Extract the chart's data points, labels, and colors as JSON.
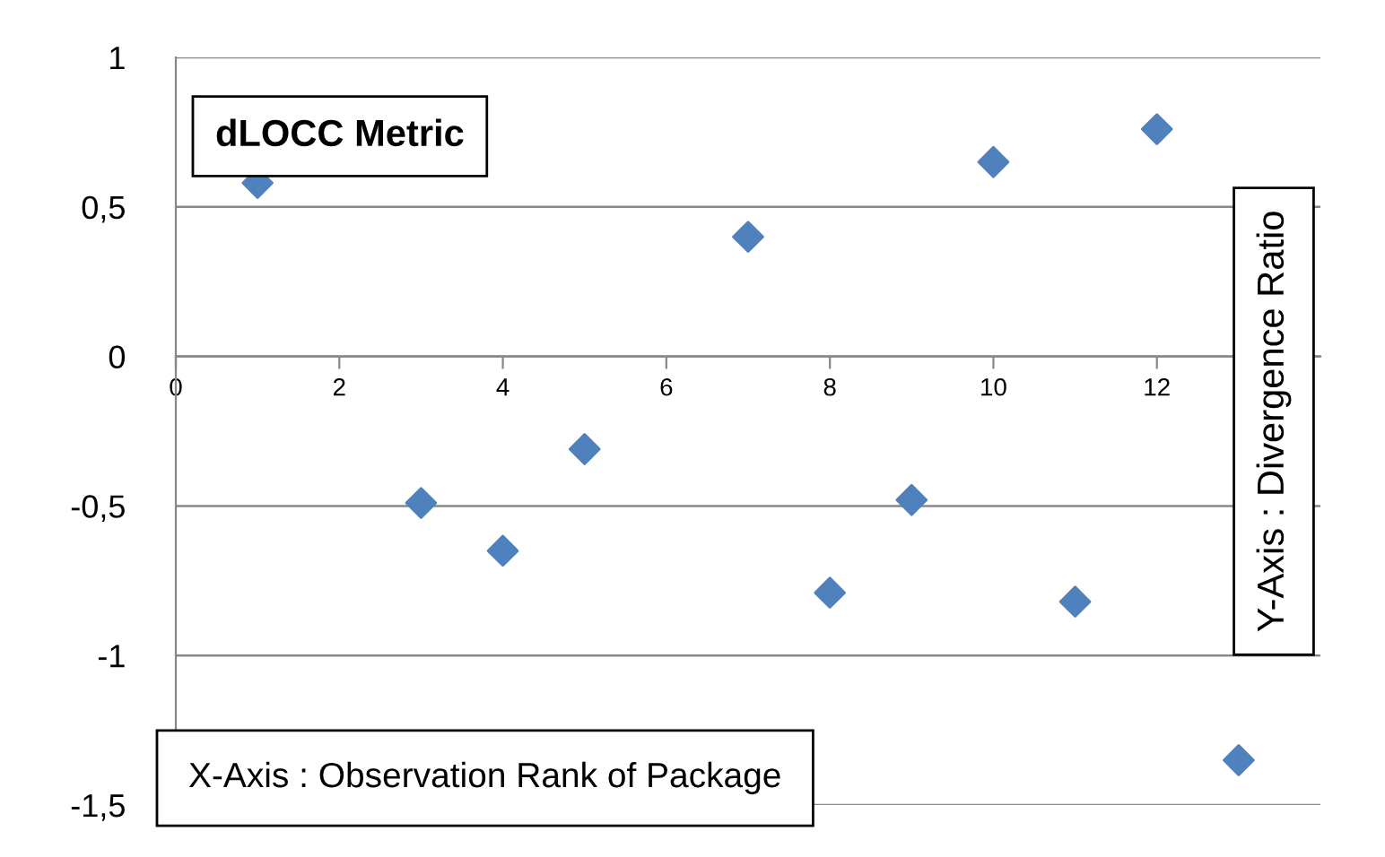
{
  "chart_data": {
    "type": "scatter",
    "title": "dLOCC Metric",
    "xlabel": "X-Axis : Observation Rank of Package",
    "ylabel": "Y-Axis : Divergence Ratio",
    "x": [
      1,
      3,
      4,
      5,
      7,
      8,
      9,
      10,
      11,
      12,
      13
    ],
    "series": [
      {
        "color": "#4f81bd",
        "values": [
          0.58,
          -0.49,
          -0.65,
          -0.31,
          0.4,
          -0.79,
          -0.48,
          0.65,
          -0.82,
          0.76,
          -1.35
        ]
      }
    ],
    "xlim": [
      0,
      14
    ],
    "xticks": [
      0,
      2,
      4,
      6,
      8,
      10,
      12
    ],
    "ylim": [
      -1.5,
      1
    ],
    "yticks": [
      {
        "value": -1.5,
        "label": "-1,5"
      },
      -1,
      {
        "value": -0.5,
        "label": "-0,5"
      },
      0,
      {
        "value": 0.5,
        "label": "0,5"
      },
      1
    ],
    "grid": "y",
    "marker": "diamond"
  }
}
